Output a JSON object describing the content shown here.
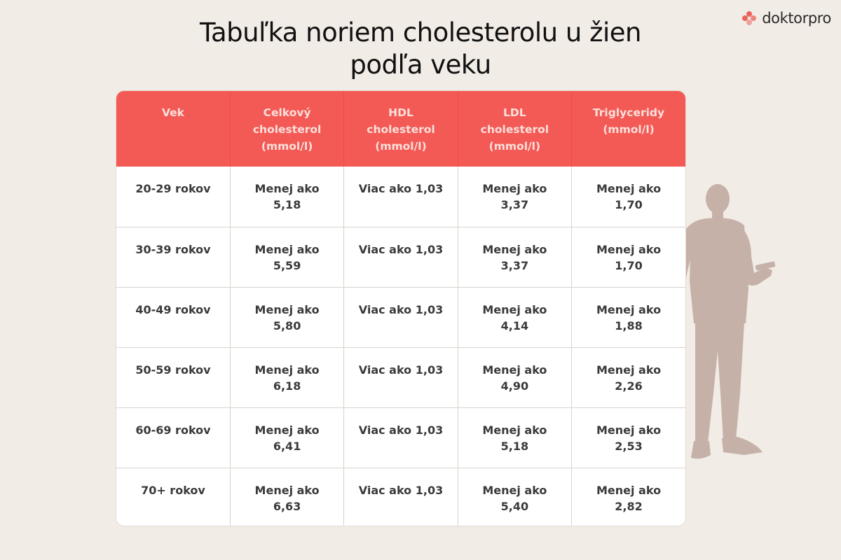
{
  "brand": {
    "name": "doktorpro",
    "logo_icon": "dots-flower-icon",
    "accent": "#f45a55"
  },
  "title": {
    "line1": "Tabuľka noriem cholesterolu u žien",
    "line2": "podľa veku"
  },
  "table": {
    "headers": [
      [
        "Vek"
      ],
      [
        "Celkový",
        "cholesterol",
        "(mmol/l)"
      ],
      [
        "HDL",
        "cholesterol",
        "(mmol/l)"
      ],
      [
        "LDL",
        "cholesterol",
        "(mmol/l)"
      ],
      [
        "Triglyceridy",
        "(mmol/l)"
      ]
    ],
    "rows": [
      {
        "age": "20-29 rokov",
        "total": [
          "Menej ako",
          "5,18"
        ],
        "hdl": "Viac ako 1,03",
        "ldl": [
          "Menej ako",
          "3,37"
        ],
        "tg": [
          "Menej ako",
          "1,70"
        ]
      },
      {
        "age": "30-39 rokov",
        "total": [
          "Menej ako",
          "5,59"
        ],
        "hdl": "Viac ako 1,03",
        "ldl": [
          "Menej ako",
          "3,37"
        ],
        "tg": [
          "Menej ako",
          "1,70"
        ]
      },
      {
        "age": "40-49 rokov",
        "total": [
          "Menej ako",
          "5,80"
        ],
        "hdl": "Viac ako 1,03",
        "ldl": [
          "Menej ako",
          "4,14"
        ],
        "tg": [
          "Menej ako",
          "1,88"
        ]
      },
      {
        "age": "50-59 rokov",
        "total": [
          "Menej ako",
          "6,18"
        ],
        "hdl": "Viac ako 1,03",
        "ldl": [
          "Menej ako",
          "4,90"
        ],
        "tg": [
          "Menej ako",
          "2,26"
        ]
      },
      {
        "age": "60-69 rokov",
        "total": [
          "Menej ako",
          "6,41"
        ],
        "hdl": "Viac ako 1,03",
        "ldl": [
          "Menej ako",
          "5,18"
        ],
        "tg": [
          "Menej ako",
          "2,53"
        ]
      },
      {
        "age": "70+ rokov",
        "total": [
          "Menej ako",
          "6,63"
        ],
        "hdl": "Viac ako 1,03",
        "ldl": [
          "Menej ako",
          "5,40"
        ],
        "tg": [
          "Menej ako",
          "2,82"
        ]
      }
    ]
  },
  "illustration": {
    "icon": "doctor-silhouette-icon"
  }
}
